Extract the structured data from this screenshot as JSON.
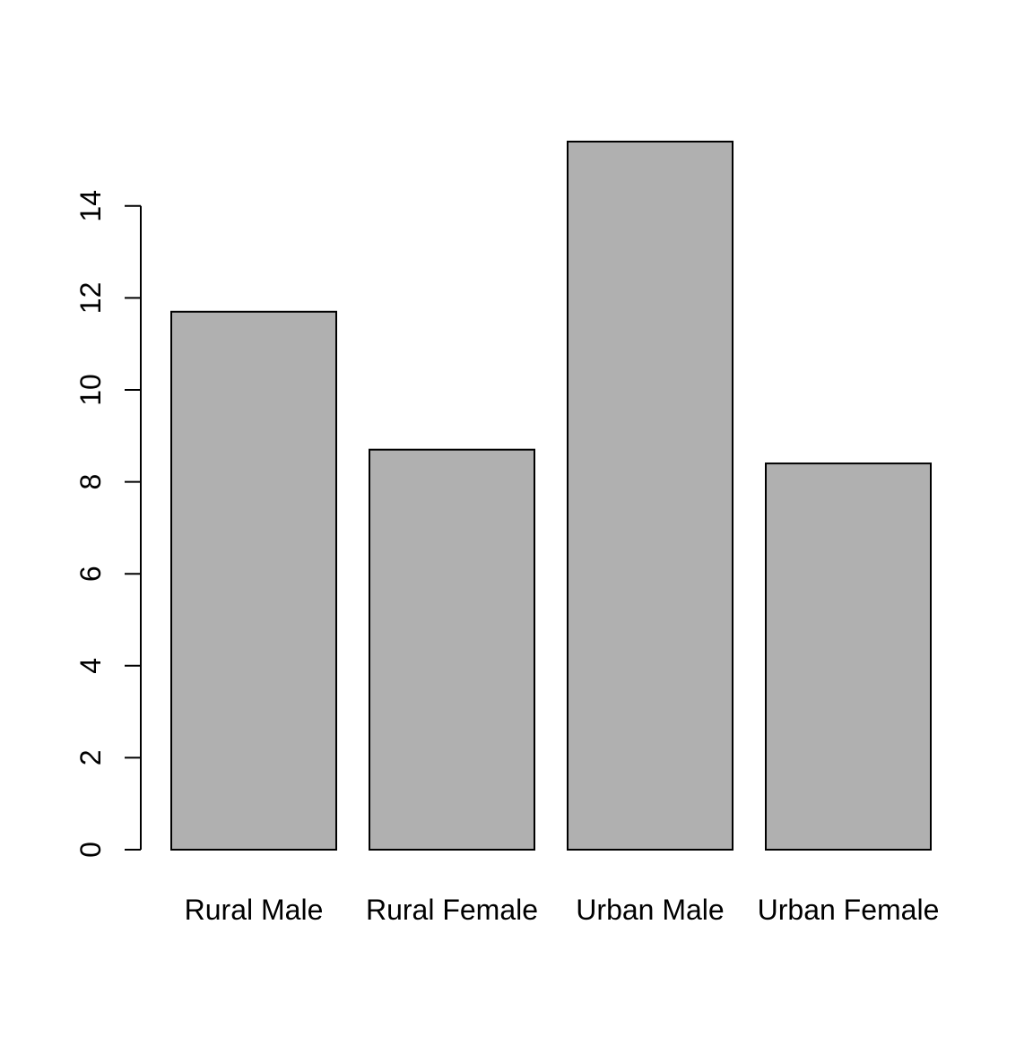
{
  "chart_data": {
    "type": "bar",
    "categories": [
      "Rural Male",
      "Rural Female",
      "Urban Male",
      "Urban Female"
    ],
    "values": [
      11.7,
      8.7,
      15.4,
      8.4
    ],
    "title": "",
    "xlabel": "",
    "ylabel": "",
    "ylim": [
      0,
      15.4
    ],
    "yticks": [
      0,
      2,
      4,
      6,
      8,
      10,
      12,
      14
    ],
    "ytick_labels": [
      "0",
      "2",
      "4",
      "6",
      "8",
      "10",
      "12",
      "14"
    ],
    "grid": false,
    "legend": "none",
    "colors": {
      "bar_fill": "#b0b0b0",
      "bar_stroke": "#000000",
      "axis": "#000000",
      "background": "#ffffff"
    }
  }
}
